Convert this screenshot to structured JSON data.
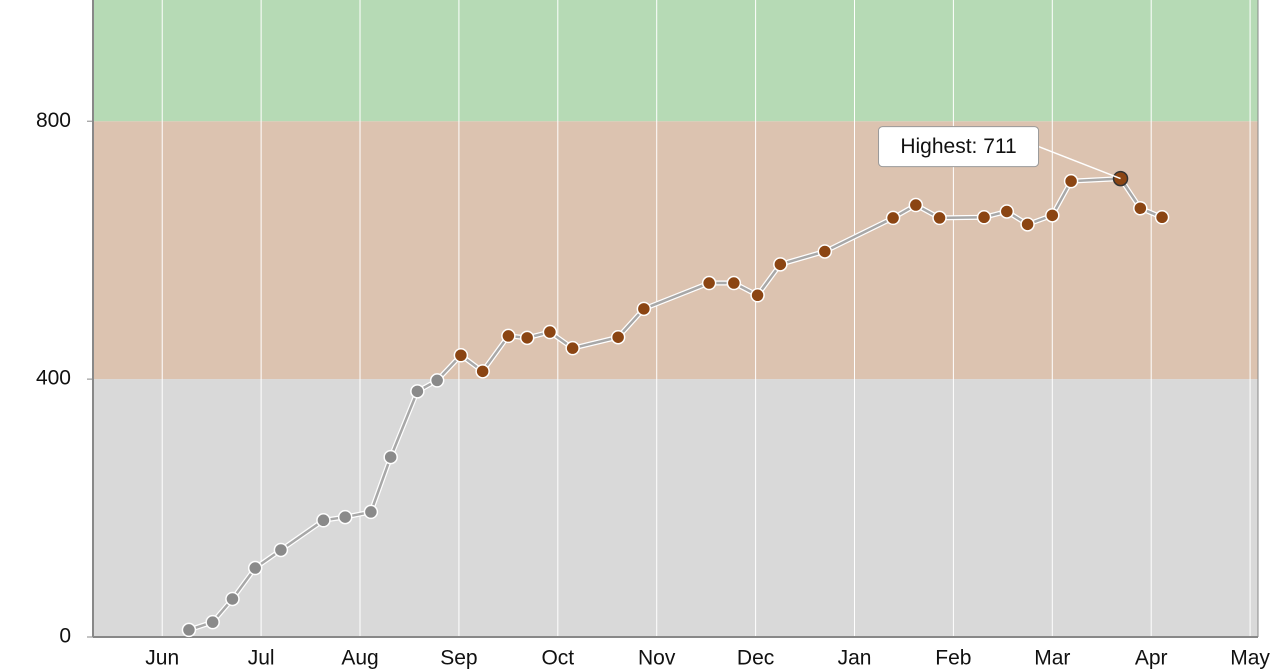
{
  "chart_data": {
    "type": "line",
    "x": [
      0.27,
      0.51,
      0.71,
      0.94,
      1.2,
      1.63,
      1.85,
      2.11,
      2.31,
      2.58,
      2.78,
      3.02,
      3.24,
      3.5,
      3.69,
      3.92,
      4.15,
      4.61,
      4.87,
      5.53,
      5.78,
      6.02,
      6.25,
      6.7,
      7.39,
      7.62,
      7.86,
      8.31,
      8.54,
      8.75,
      9.0,
      9.19,
      9.69,
      9.89,
      10.11
    ],
    "series": [
      {
        "color": "#8b4513",
        "values": [
          11,
          23,
          59,
          107,
          135,
          181,
          186,
          194,
          279,
          381,
          398,
          437,
          412,
          467,
          464,
          473,
          448,
          465,
          509,
          549,
          549,
          530,
          578,
          598,
          650,
          670,
          650,
          651,
          660,
          640,
          654,
          707,
          711,
          665,
          651
        ]
      }
    ],
    "threshold_color": "#8a8a8a",
    "line_color": "#a8a8a8",
    "bands": [
      {
        "from": 0,
        "to": 400,
        "color": "#d9d9d9"
      },
      {
        "from": 400,
        "to": 800,
        "color": "#dcc3b0"
      },
      {
        "from": 800,
        "to": 988,
        "color": "#b6dab5"
      }
    ],
    "ylim": [
      0,
      988
    ],
    "yticks": [
      0,
      400,
      800
    ],
    "xlim": [
      -0.7,
      11.08
    ],
    "xticks": [
      {
        "value": 0,
        "label": "Jun"
      },
      {
        "value": 1,
        "label": "Jul"
      },
      {
        "value": 2,
        "label": "Aug"
      },
      {
        "value": 3,
        "label": "Sep"
      },
      {
        "value": 4,
        "label": "Oct"
      },
      {
        "value": 5,
        "label": "Nov"
      },
      {
        "value": 6,
        "label": "Dec"
      },
      {
        "value": 7,
        "label": "Jan"
      },
      {
        "value": 8,
        "label": "Feb"
      },
      {
        "value": 9,
        "label": "Mar"
      },
      {
        "value": 10,
        "label": "Apr"
      },
      {
        "value": 11,
        "label": "May"
      }
    ],
    "grid": true,
    "annotation": "Highest: 711"
  }
}
